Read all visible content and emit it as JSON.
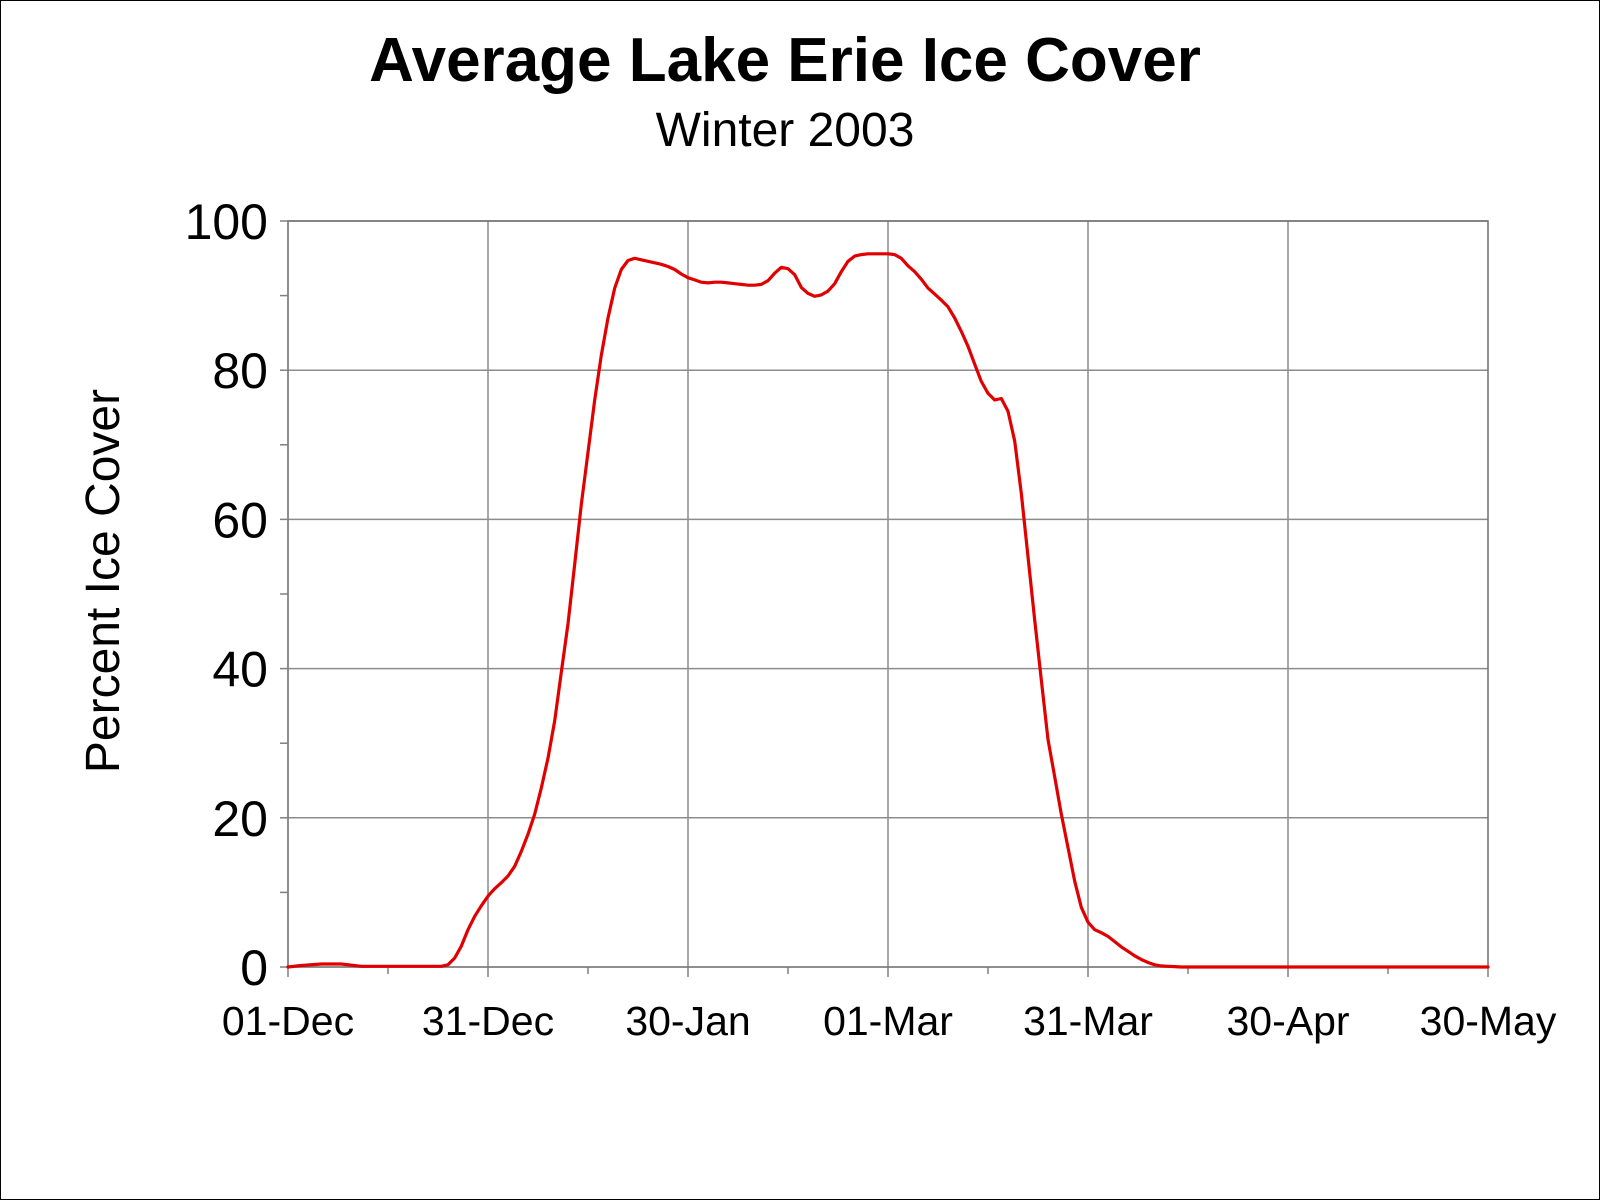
{
  "chart_data": {
    "type": "line",
    "title": "Average Lake Erie Ice Cover",
    "subtitle": "Winter 2003",
    "xlabel": "",
    "ylabel": "Percent Ice Cover",
    "ylim": [
      0,
      100
    ],
    "xlim": [
      "01-Dec",
      "30-May"
    ],
    "grid": true,
    "legend": "none",
    "y_ticks": [
      "0",
      "20",
      "40",
      "60",
      "80",
      "100"
    ],
    "y_tick_values": [
      0,
      20,
      40,
      60,
      80,
      100
    ],
    "x_tick_labels": [
      "01-Dec",
      "31-Dec",
      "30-Jan",
      "01-Mar",
      "31-Mar",
      "30-Apr",
      "30-May"
    ],
    "x_tick_days": [
      0,
      30,
      60,
      90,
      120,
      150,
      180
    ],
    "series": [
      {
        "color": "#e00000",
        "x_days": [
          0,
          2,
          5,
          8,
          11,
          14,
          17,
          20,
          23,
          24,
          25,
          26,
          27,
          28,
          29,
          30,
          31,
          32,
          33,
          34,
          35,
          36,
          37,
          38,
          39,
          40,
          41,
          42,
          43,
          44,
          45,
          46,
          47,
          48,
          49,
          50,
          51,
          52,
          53,
          54,
          55,
          56,
          57,
          58,
          59,
          60,
          61,
          62,
          63,
          64,
          65,
          66,
          67,
          68,
          69,
          70,
          71,
          72,
          73,
          74,
          75,
          76,
          77,
          78,
          79,
          80,
          81,
          82,
          83,
          84,
          85,
          86,
          87,
          88,
          89,
          90,
          91,
          92,
          93,
          94,
          95,
          96,
          97,
          98,
          99,
          100,
          101,
          102,
          103,
          104,
          105,
          106,
          107,
          108,
          109,
          110,
          111,
          112,
          113,
          114,
          115,
          116,
          117,
          118,
          119,
          120,
          121,
          122,
          123,
          124,
          125,
          126,
          127,
          128,
          129,
          130,
          131,
          132,
          133,
          134,
          135,
          136,
          137,
          138,
          139,
          140,
          141,
          142,
          143,
          144,
          145,
          146,
          147,
          148,
          149,
          150,
          155,
          160,
          165,
          170,
          175,
          180
        ],
        "values": [
          0,
          0.2,
          0.4,
          0.4,
          0.1,
          0.1,
          0.1,
          0.1,
          0.1,
          0.3,
          1.2,
          2.8,
          5.0,
          6.8,
          8.2,
          9.5,
          10.5,
          11.3,
          12.2,
          13.5,
          15.5,
          17.8,
          20.5,
          24,
          28,
          33,
          39.5,
          46,
          54,
          62,
          69,
          76,
          82,
          87,
          91,
          93.5,
          94.7,
          95.0,
          94.8,
          94.6,
          94.4,
          94.2,
          93.9,
          93.5,
          92.9,
          92.4,
          92.1,
          91.8,
          91.7,
          91.8,
          91.8,
          91.7,
          91.6,
          91.5,
          91.4,
          91.4,
          91.5,
          92.0,
          93.0,
          93.8,
          93.6,
          92.8,
          91.1,
          90.3,
          89.9,
          90.1,
          90.6,
          91.6,
          93.2,
          94.6,
          95.3,
          95.5,
          95.6,
          95.6,
          95.6,
          95.6,
          95.5,
          95.0,
          94.0,
          93.2,
          92.2,
          91.0,
          90.2,
          89.4,
          88.5,
          87.0,
          85.2,
          83.2,
          80.8,
          78.5,
          76.9,
          76.0,
          76.2,
          74.5,
          70.5,
          63.5,
          55.0,
          46.5,
          38.5,
          30.5,
          25.5,
          20.5,
          16.0,
          11.5,
          8.0,
          6.0,
          5.0,
          4.6,
          4.1,
          3.4,
          2.7,
          2.1,
          1.5,
          1.0,
          0.6,
          0.3,
          0.15,
          0.1,
          0.05,
          0,
          0,
          0,
          0,
          0,
          0,
          0,
          0,
          0,
          0,
          0,
          0,
          0,
          0,
          0,
          0,
          0,
          0,
          0,
          0,
          0,
          0,
          0
        ]
      }
    ]
  }
}
